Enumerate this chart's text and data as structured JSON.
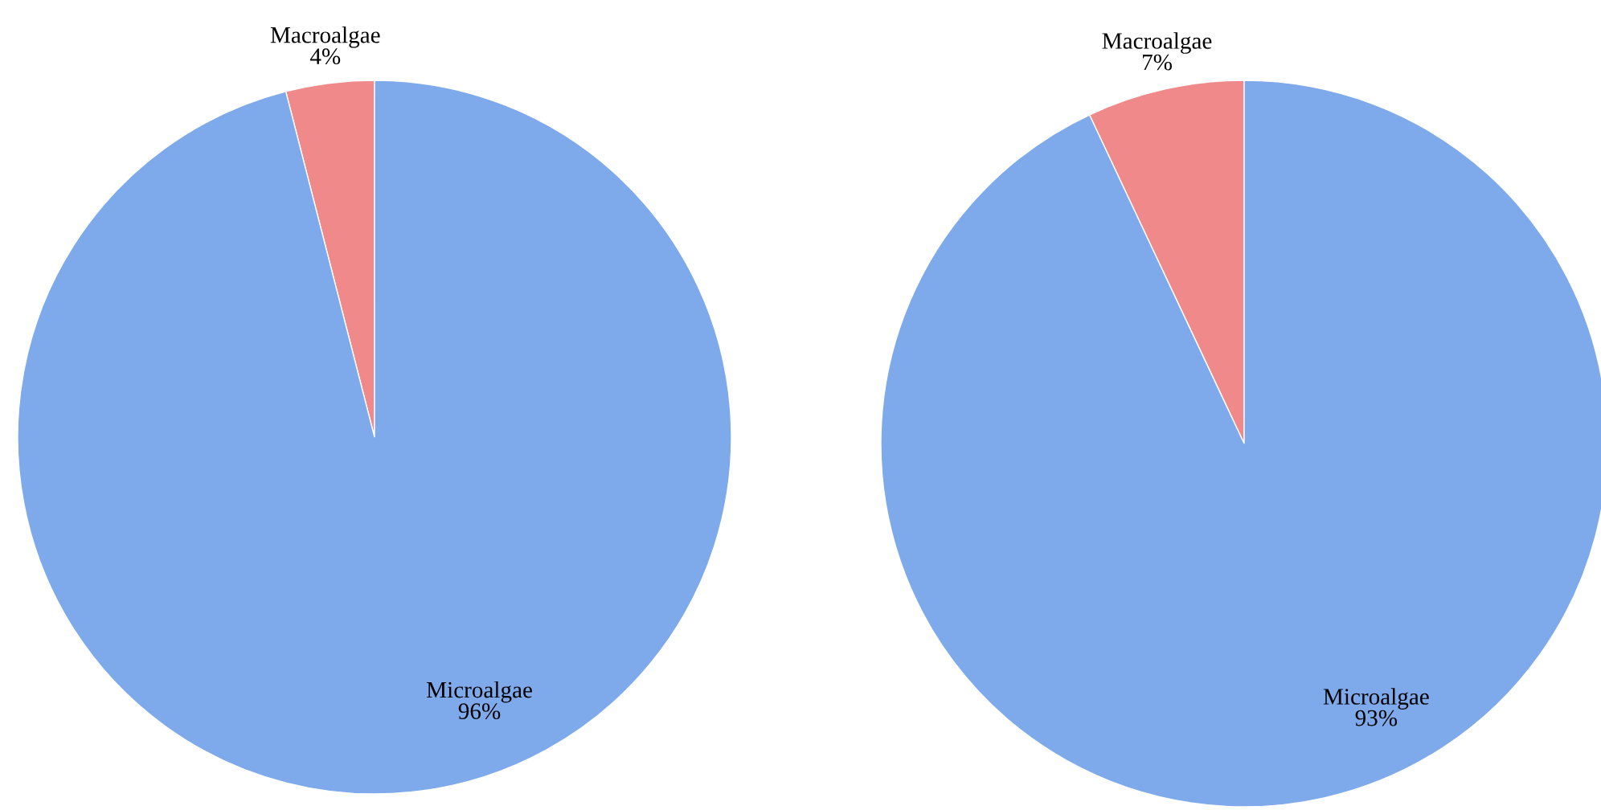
{
  "chart_data": [
    {
      "type": "pie",
      "categories": [
        "Macroalgae",
        "Microalgae"
      ],
      "values": [
        4,
        96
      ],
      "value_labels": [
        "4%",
        "96%"
      ],
      "colors": [
        "#f08a8a",
        "#7ea9ea"
      ]
    },
    {
      "type": "pie",
      "categories": [
        "Macroalgae",
        "Microalgae"
      ],
      "values": [
        7,
        93
      ],
      "value_labels": [
        "7%",
        "93%"
      ],
      "colors": [
        "#f08a8a",
        "#7ea9ea"
      ]
    }
  ]
}
